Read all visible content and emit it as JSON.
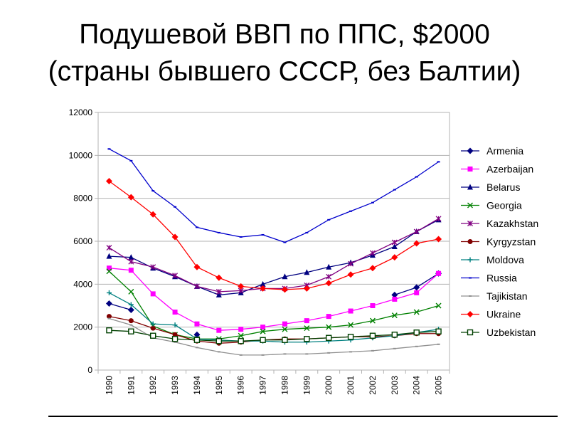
{
  "title_line1": "Подушевой ВВП по ППС, $2000",
  "title_line2": "(страны бывшего СССР, без Балтии)",
  "chart_data": {
    "type": "line",
    "title": "",
    "xlabel": "",
    "ylabel": "",
    "ylim": [
      0,
      12000
    ],
    "yticks": [
      0,
      2000,
      4000,
      6000,
      8000,
      10000,
      12000
    ],
    "grid": "horizontal",
    "legend_position": "right",
    "x": [
      "1990",
      "1991",
      "1992",
      "1993",
      "1994",
      "1995",
      "1996",
      "1997",
      "1998",
      "1999",
      "2000",
      "2001",
      "2002",
      "2003",
      "2004",
      "2005"
    ],
    "series": [
      {
        "name": "Armenia",
        "color": "#000080",
        "marker": "diamond",
        "values": [
          3100,
          2800,
          null,
          null,
          1650,
          null,
          null,
          null,
          null,
          null,
          null,
          null,
          null,
          3500,
          3850,
          4500
        ]
      },
      {
        "name": "Azerbaijan",
        "color": "#ff00ff",
        "marker": "square",
        "values": [
          4750,
          4650,
          3550,
          2700,
          2150,
          1850,
          1900,
          2000,
          2150,
          2300,
          2500,
          2750,
          3000,
          3300,
          3600,
          4500
        ]
      },
      {
        "name": "Belarus",
        "color": "#000080",
        "marker": "triangle",
        "values": [
          5300,
          5250,
          4750,
          4350,
          3900,
          3500,
          3600,
          4000,
          4350,
          4550,
          4800,
          5000,
          5350,
          5750,
          6450,
          7000
        ]
      },
      {
        "name": "Georgia",
        "color": "#008000",
        "marker": "x",
        "values": [
          4600,
          3650,
          2050,
          1650,
          1450,
          1450,
          1600,
          1800,
          1900,
          1950,
          2000,
          2100,
          2300,
          2550,
          2700,
          3000
        ]
      },
      {
        "name": "Kazakhstan",
        "color": "#800080",
        "marker": "star",
        "values": [
          5700,
          5050,
          4800,
          4400,
          3900,
          3650,
          3700,
          3800,
          3800,
          3950,
          4350,
          4950,
          5450,
          5950,
          6450,
          7050
        ]
      },
      {
        "name": "Kyrgyzstan",
        "color": "#800000",
        "marker": "circle",
        "values": [
          2500,
          2300,
          1950,
          1650,
          1350,
          1250,
          1300,
          1400,
          1450,
          1450,
          1500,
          1550,
          1550,
          1600,
          1700,
          1700
        ]
      },
      {
        "name": "Moldova",
        "color": "#008080",
        "marker": "plus",
        "values": [
          3600,
          3050,
          2150,
          2100,
          1450,
          1400,
          1350,
          1350,
          1300,
          1300,
          1350,
          1400,
          1500,
          1600,
          1750,
          1900
        ]
      },
      {
        "name": "Russia",
        "color": "#0000cc",
        "marker": "dash",
        "values": [
          10300,
          9750,
          8350,
          7600,
          6650,
          6400,
          6200,
          6300,
          5950,
          6400,
          7000,
          7400,
          7800,
          8400,
          9000,
          9700
        ]
      },
      {
        "name": "Tajikistan",
        "color": "#909090",
        "marker": "dash",
        "values": [
          2400,
          2100,
          1500,
          1300,
          1050,
          850,
          700,
          700,
          750,
          750,
          800,
          850,
          900,
          1000,
          1100,
          1200
        ]
      },
      {
        "name": "Ukraine",
        "color": "#ff0000",
        "marker": "diamond",
        "values": [
          8800,
          8050,
          7250,
          6200,
          4800,
          4300,
          3900,
          3800,
          3750,
          3800,
          4050,
          4450,
          4750,
          5250,
          5900,
          6100
        ]
      },
      {
        "name": "Uzbekistan",
        "color": "#004000",
        "marker": "hollow-square",
        "values": [
          1850,
          1800,
          1600,
          1450,
          1400,
          1350,
          1350,
          1400,
          1400,
          1450,
          1500,
          1550,
          1600,
          1650,
          1750,
          1800
        ]
      }
    ]
  }
}
